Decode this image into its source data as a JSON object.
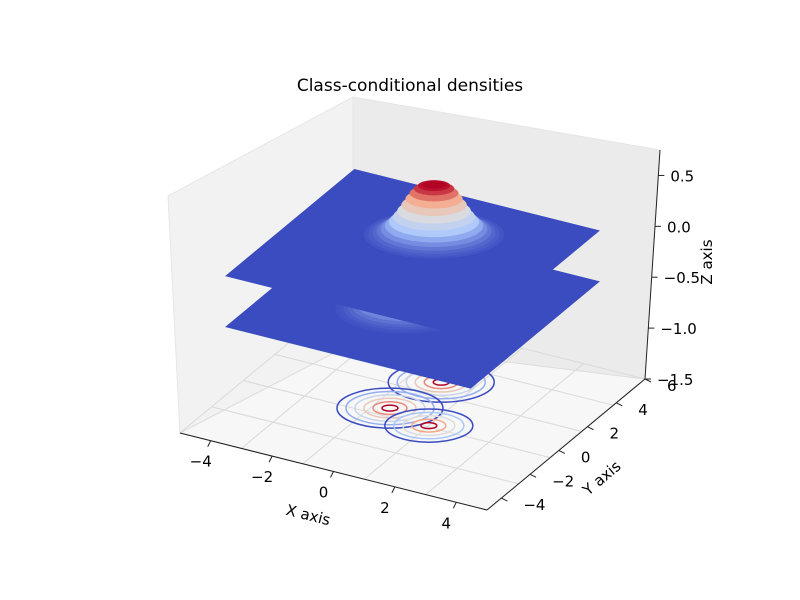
{
  "chart_data": {
    "type": "surface3d",
    "title": "Class-conditional densities",
    "xlabel": "X axis",
    "ylabel": "Y axis",
    "zlabel": "Z axis",
    "xlim": [
      -5,
      5
    ],
    "ylim": [
      -5,
      6
    ],
    "zlim": [
      -1.5,
      0.75
    ],
    "xticks": [
      "−4",
      "−2",
      "0",
      "2",
      "4"
    ],
    "yticks": [
      "−4",
      "−2",
      "0",
      "2",
      "4",
      "6"
    ],
    "zticks": [
      "−1.5",
      "−1.0",
      "−0.5",
      "0.0",
      "0.5"
    ],
    "colormap": [
      "#3b4cc0",
      "#b40426"
    ],
    "surfaces": [
      {
        "base_z": -0.5,
        "peaks": [
          {
            "x": 0,
            "y": 0,
            "height": 0.3
          }
        ]
      },
      {
        "base_z": 0.0,
        "peaks": [
          {
            "x": 0,
            "y": 2,
            "height": 0.5
          }
        ]
      }
    ],
    "contour_offset_z": -1.5,
    "contours": [
      {
        "cx": 0,
        "cy": 2.5,
        "levels": 6
      },
      {
        "cx": -0.5,
        "cy": 0,
        "levels": 6
      },
      {
        "cx": 1,
        "cy": -0.5,
        "levels": 5
      }
    ],
    "grid": true
  }
}
